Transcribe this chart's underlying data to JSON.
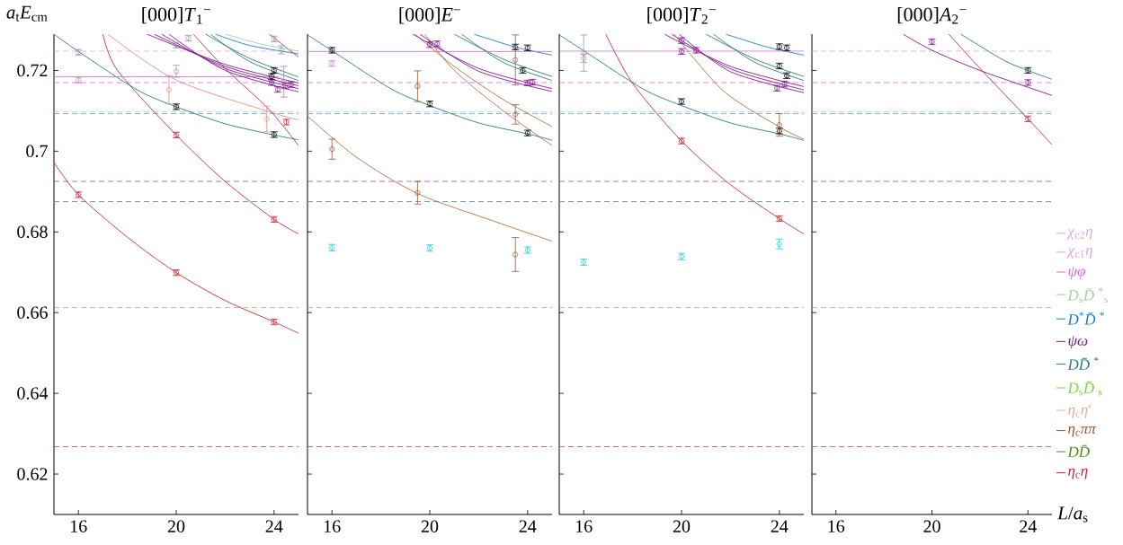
{
  "chart_data": [
    {
      "type": "scatter",
      "title": "[000]*T*$_{1}$$^{−}$",
      "ylabel": "*a*$_{t}$*E*$_{cm}$",
      "xlim": [
        15,
        25
      ],
      "ylim": [
        0.61,
        0.729
      ],
      "xticks": [
        16,
        20,
        24
      ],
      "yticks": [
        0.62,
        0.64,
        0.66,
        0.68,
        0.7,
        0.72
      ],
      "ref_lines": [
        {
          "axis": "y",
          "value": 0.7248,
          "color": "#e0a0e0",
          "line_style": "dashed"
        },
        {
          "axis": "y",
          "value": 0.717,
          "color": "#dd66dd",
          "line_style": "dashed"
        },
        {
          "axis": "y",
          "value": 0.7098,
          "color": "#b5c9b5",
          "line_style": "dashed"
        },
        {
          "axis": "y",
          "value": 0.7093,
          "color": "#6fa8dc",
          "line_style": "dashed"
        },
        {
          "axis": "y",
          "value": 0.6925,
          "color": "#9a4aa2",
          "line_style": "dashed"
        },
        {
          "axis": "y",
          "value": 0.6875,
          "color": "#5f9290",
          "line_style": "dashed"
        },
        {
          "axis": "y",
          "value": 0.6612,
          "color": "#b86a3a",
          "line_style": "dashed"
        },
        {
          "axis": "y",
          "value": 0.6268,
          "color": "#d9505e",
          "line_style": "dashed"
        }
      ],
      "series": [
        {
          "type": "line",
          "color": "#cc2936",
          "x": [
            15,
            16,
            18,
            20,
            22,
            24,
            25
          ],
          "values": [
            0.6972,
            0.6892,
            0.6787,
            0.6699,
            0.663,
            0.6577,
            0.6549
          ]
        },
        {
          "type": "line",
          "color": "#cc2936",
          "x": [
            17.0,
            17.6,
            20,
            22,
            24,
            25
          ],
          "values": [
            0.729,
            0.72,
            0.704,
            0.6925,
            0.6831,
            0.6795
          ]
        },
        {
          "type": "line",
          "color": "#cc2936",
          "x": [
            20.7,
            22,
            23.8,
            25
          ],
          "values": [
            0.729,
            0.7205,
            0.7103,
            0.7014
          ]
        },
        {
          "type": "line",
          "color": "#cc2936",
          "x": [
            23.8,
            25
          ],
          "values": [
            0.729,
            0.7233
          ]
        },
        {
          "type": "line",
          "color": "#2a7b78",
          "x": [
            15,
            16,
            18.4,
            20,
            22,
            24,
            25
          ],
          "values": [
            0.729,
            0.7247,
            0.7152,
            0.711,
            0.7068,
            0.704,
            0.7028
          ]
        },
        {
          "type": "line",
          "color": "#e09088",
          "x": [
            17.2,
            20,
            24,
            25
          ],
          "values": [
            0.729,
            0.7176,
            0.7094,
            0.7078
          ]
        },
        {
          "type": "line",
          "color": "#cc66cc",
          "x": [
            15,
            24.2
          ],
          "values": [
            0.7184,
            0.7184
          ]
        },
        {
          "type": "line",
          "color": "#80168c",
          "x": [
            18.8,
            22,
            25
          ],
          "values": [
            0.729,
            0.7215,
            0.7169
          ]
        },
        {
          "type": "line",
          "color": "#80168c",
          "x": [
            19.1,
            22,
            25
          ],
          "values": [
            0.729,
            0.721,
            0.7162
          ]
        },
        {
          "type": "line",
          "color": "#80168c",
          "x": [
            19.4,
            22,
            25
          ],
          "values": [
            0.729,
            0.7205,
            0.7155
          ]
        },
        {
          "type": "line",
          "color": "#80168c",
          "x": [
            19.7,
            22,
            25
          ],
          "values": [
            0.729,
            0.72,
            0.7147
          ]
        },
        {
          "type": "line",
          "color": "#2a7b78",
          "x": [
            21.2,
            23,
            25
          ],
          "values": [
            0.729,
            0.723,
            0.7184
          ]
        },
        {
          "type": "line",
          "color": "#2a7b78",
          "x": [
            21.4,
            23,
            25
          ],
          "values": [
            0.729,
            0.7222,
            0.7175
          ]
        },
        {
          "type": "line",
          "color": "#1a7acc",
          "x": [
            21.6,
            23,
            25
          ],
          "values": [
            0.729,
            0.7262,
            0.7241
          ]
        },
        {
          "type": "line",
          "color": "#a8c8a8",
          "x": [
            22.0,
            23.5,
            25
          ],
          "values": [
            0.729,
            0.7265,
            0.7248
          ]
        },
        {
          "marker": "circle",
          "color": "#000000",
          "x": [
            20,
            24,
            24,
            23.9
          ],
          "values": [
            0.711,
            0.7041,
            0.72,
            0.7185
          ],
          "errors": [
            0.0007,
            0.0007,
            0.0007,
            0.0007
          ]
        },
        {
          "marker": "circle",
          "color": "#999999",
          "x": [
            16,
            20,
            20.5,
            24,
            24.3
          ],
          "values": [
            0.7245,
            0.7263,
            0.728,
            0.7278,
            0.7251
          ],
          "errors": [
            0.0007,
            0.0007,
            0.0007,
            0.0007,
            0.001
          ]
        },
        {
          "marker": "circle",
          "color": "#cc2936",
          "x": [
            16,
            20,
            20,
            24,
            24,
            24.5
          ],
          "values": [
            0.6892,
            0.704,
            0.6699,
            0.6831,
            0.6577,
            0.7072
          ],
          "errors": [
            0.0007,
            0.0007,
            0.0007,
            0.0007,
            0.0007,
            0.0007
          ]
        },
        {
          "marker": "circle",
          "color": "#cc88cc",
          "x": [
            16,
            20
          ],
          "values": [
            0.7176,
            0.7198
          ],
          "errors": [
            0.0007,
            0.0015
          ]
        },
        {
          "marker": "circle",
          "color": "#e09088",
          "x": [
            19.7,
            23.7
          ],
          "values": [
            0.7152,
            0.708
          ],
          "errors": [
            0.0035,
            0.0032
          ]
        },
        {
          "marker": "circle",
          "color": "#80168c",
          "x": [
            23.9,
            24.15,
            24.45,
            24.7
          ],
          "values": [
            0.717,
            0.7153,
            0.7162,
            0.7165
          ],
          "errors": [
            0.0007,
            0.0007,
            0.0007,
            0.0007
          ]
        },
        {
          "marker": "circle",
          "color": "#cc66cc",
          "x": [
            24.4
          ],
          "values": [
            0.7172
          ],
          "errors": [
            0.0038
          ]
        }
      ]
    },
    {
      "type": "scatter",
      "title": "[000]*E*$^{−}$",
      "xlim": [
        15,
        25
      ],
      "ylim": [
        0.61,
        0.729
      ],
      "xticks": [
        16,
        20,
        24
      ],
      "yticks": [
        0.62,
        0.64,
        0.66,
        0.68,
        0.7,
        0.72
      ],
      "tick_labels": "x",
      "ref_lines": [
        {
          "axis": "y",
          "value": 0.717,
          "color": "#dd66dd",
          "line_style": "dashed"
        },
        {
          "axis": "y",
          "value": 0.7098,
          "color": "#b5c9b5",
          "line_style": "dashed"
        },
        {
          "axis": "y",
          "value": 0.7093,
          "color": "#6fa8dc",
          "line_style": "dashed"
        },
        {
          "axis": "y",
          "value": 0.6925,
          "color": "#9a4aa2",
          "line_style": "dashed"
        },
        {
          "axis": "y",
          "value": 0.6875,
          "color": "#5f9290",
          "line_style": "dashed"
        },
        {
          "axis": "y",
          "value": 0.6612,
          "color": "#b86a3a",
          "line_style": "dashed"
        },
        {
          "axis": "y",
          "value": 0.6268,
          "color": "#d9505e",
          "line_style": "dashed"
        }
      ],
      "series": [
        {
          "type": "line",
          "color": "#2a7b78",
          "x": [
            15,
            16,
            18.4,
            20,
            22,
            24,
            25
          ],
          "values": [
            0.7288,
            0.7249,
            0.7155,
            0.7113,
            0.707,
            0.7043,
            0.7027
          ]
        },
        {
          "type": "line",
          "color": "#b0704a",
          "x": [
            15,
            17,
            19.5,
            22.6,
            25
          ],
          "values": [
            0.7087,
            0.6985,
            0.6895,
            0.6827,
            0.6777
          ]
        },
        {
          "type": "line",
          "color": "#b0704a",
          "x": [
            19.4,
            21,
            23,
            25
          ],
          "values": [
            0.729,
            0.721,
            0.7128,
            0.7061
          ]
        },
        {
          "type": "line",
          "color": "#b0704a",
          "x": [
            19.8,
            21,
            23,
            25
          ],
          "values": [
            0.729,
            0.72,
            0.71,
            0.7014
          ]
        },
        {
          "type": "line",
          "color": "#80168c",
          "x": [
            19.3,
            22,
            25
          ],
          "values": [
            0.729,
            0.7205,
            0.7155
          ]
        },
        {
          "type": "line",
          "color": "#80168c",
          "x": [
            19.6,
            22,
            25
          ],
          "values": [
            0.729,
            0.7198,
            0.7148
          ]
        },
        {
          "type": "line",
          "color": "#2a7b78",
          "x": [
            21.0,
            23,
            25
          ],
          "values": [
            0.729,
            0.7228,
            0.7185
          ]
        },
        {
          "type": "line",
          "color": "#2a7b78",
          "x": [
            21.3,
            23,
            25
          ],
          "values": [
            0.729,
            0.722,
            0.7175
          ]
        },
        {
          "type": "line",
          "color": "#1a7acc",
          "x": [
            21.8,
            23.5,
            25
          ],
          "values": [
            0.729,
            0.7258,
            0.7238
          ]
        },
        {
          "type": "line",
          "color": "#cc66cc",
          "x": [
            15,
            25
          ],
          "values": [
            0.7247,
            0.7247
          ]
        },
        {
          "marker": "circle",
          "color": "#000000",
          "x": [
            16,
            20,
            23.5,
            23.8,
            24,
            24
          ],
          "values": [
            0.725,
            0.7117,
            0.7258,
            0.72,
            0.7256,
            0.7045
          ],
          "errors": [
            0.0007,
            0.0007,
            0.0007,
            0.0007,
            0.0007,
            0.0007
          ]
        },
        {
          "marker": "circle",
          "color": "#cc88cc",
          "x": [
            16
          ],
          "values": [
            0.7217
          ],
          "errors": [
            0.0007
          ]
        },
        {
          "marker": "circle",
          "color": "#a0522d",
          "x": [
            16,
            19.5,
            19.5,
            23.5,
            23.5,
            23.5
          ],
          "values": [
            0.7005,
            0.7161,
            0.6897,
            0.7226,
            0.7091,
            0.6744
          ],
          "errors": [
            0.0025,
            0.0038,
            0.0028,
            0.0062,
            0.0024,
            0.0042
          ]
        },
        {
          "marker": "circle",
          "color": "#20d0d0",
          "x": [
            16,
            20,
            24
          ],
          "values": [
            0.6761,
            0.676,
            0.6755
          ],
          "errors": [
            0.0008,
            0.0008,
            0.0008
          ]
        },
        {
          "marker": "circle",
          "color": "#80168c",
          "x": [
            20,
            20.3,
            24,
            24.2
          ],
          "values": [
            0.7264,
            0.7266,
            0.7169,
            0.7171
          ],
          "errors": [
            0.0007,
            0.0007,
            0.0007,
            0.0007
          ]
        }
      ]
    },
    {
      "type": "scatter",
      "title": "[000]*T*$_{2}$$^{−}$",
      "xlim": [
        15,
        25
      ],
      "ylim": [
        0.61,
        0.729
      ],
      "xticks": [
        16,
        20,
        24
      ],
      "yticks": [
        0.62,
        0.64,
        0.66,
        0.68,
        0.7,
        0.72
      ],
      "tick_labels": "x",
      "ref_lines": [
        {
          "axis": "y",
          "value": 0.717,
          "color": "#dd66dd",
          "line_style": "dashed"
        },
        {
          "axis": "y",
          "value": 0.7098,
          "color": "#b5c9b5",
          "line_style": "dashed"
        },
        {
          "axis": "y",
          "value": 0.7093,
          "color": "#6fa8dc",
          "line_style": "dashed"
        },
        {
          "axis": "y",
          "value": 0.6925,
          "color": "#9a4aa2",
          "line_style": "dashed"
        },
        {
          "axis": "y",
          "value": 0.6875,
          "color": "#5f9290",
          "line_style": "dashed"
        },
        {
          "axis": "y",
          "value": 0.6612,
          "color": "#b86a3a",
          "line_style": "dashed"
        },
        {
          "axis": "y",
          "value": 0.6268,
          "color": "#d9505e",
          "line_style": "dashed"
        }
      ],
      "series": [
        {
          "type": "line",
          "color": "#2a7b78",
          "x": [
            15,
            16,
            18.4,
            20,
            22,
            24,
            25
          ],
          "values": [
            0.7288,
            0.7249,
            0.7155,
            0.7113,
            0.707,
            0.7043,
            0.7027
          ]
        },
        {
          "type": "line",
          "color": "#cc2936",
          "x": [
            16.9,
            18,
            20,
            22,
            24,
            25
          ],
          "values": [
            0.729,
            0.7168,
            0.7025,
            0.6917,
            0.6833,
            0.6795
          ]
        },
        {
          "type": "line",
          "color": "#80168c",
          "x": [
            19.3,
            22,
            25
          ],
          "values": [
            0.729,
            0.721,
            0.716
          ]
        },
        {
          "type": "line",
          "color": "#80168c",
          "x": [
            19.6,
            22,
            25
          ],
          "values": [
            0.729,
            0.7204,
            0.7152
          ]
        },
        {
          "type": "line",
          "color": "#80168c",
          "x": [
            19.9,
            22,
            25
          ],
          "values": [
            0.729,
            0.7197,
            0.7145
          ]
        },
        {
          "type": "line",
          "color": "#2a7b78",
          "x": [
            21.0,
            23,
            25
          ],
          "values": [
            0.729,
            0.7228,
            0.7185
          ]
        },
        {
          "type": "line",
          "color": "#2a7b78",
          "x": [
            21.3,
            23,
            25
          ],
          "values": [
            0.729,
            0.722,
            0.7175
          ]
        },
        {
          "type": "line",
          "color": "#1a7acc",
          "x": [
            21.8,
            23.5,
            25
          ],
          "values": [
            0.729,
            0.7258,
            0.7238
          ]
        },
        {
          "type": "line",
          "color": "#b0704a",
          "x": [
            19.7,
            21.7,
            24,
            25
          ],
          "values": [
            0.729,
            0.715,
            0.706,
            0.703
          ]
        },
        {
          "type": "line",
          "color": "#cc66cc",
          "x": [
            15,
            25
          ],
          "values": [
            0.7248,
            0.7248
          ]
        },
        {
          "marker": "circle",
          "color": "#999999",
          "x": [
            16
          ],
          "values": [
            0.7243
          ],
          "errors": [
            0.0045
          ]
        },
        {
          "marker": "circle",
          "color": "#cc88cc",
          "x": [
            16
          ],
          "values": [
            0.723
          ],
          "errors": [
            0.001
          ]
        },
        {
          "marker": "circle",
          "color": "#000000",
          "x": [
            20,
            24,
            24,
            24.3,
            24,
            24.3
          ],
          "values": [
            0.7123,
            0.705,
            0.7211,
            0.7187,
            0.7259,
            0.7256
          ],
          "errors": [
            0.0007,
            0.0007,
            0.0007,
            0.0007,
            0.0007,
            0.0007
          ]
        },
        {
          "marker": "circle",
          "color": "#cc2936",
          "x": [
            20,
            24
          ],
          "values": [
            0.7025,
            0.6833
          ],
          "errors": [
            0.0007,
            0.0007
          ]
        },
        {
          "marker": "circle",
          "color": "#20d0d0",
          "x": [
            16,
            20,
            24
          ],
          "values": [
            0.6725,
            0.6739,
            0.677
          ],
          "errors": [
            0.0008,
            0.0008,
            0.0012
          ]
        },
        {
          "marker": "circle",
          "color": "#80168c",
          "x": [
            20,
            20,
            20.6,
            23.9,
            24.2
          ],
          "values": [
            0.7274,
            0.7247,
            0.725,
            0.7156,
            0.7166
          ],
          "errors": [
            0.0007,
            0.0007,
            0.0007,
            0.0007,
            0.0007
          ]
        },
        {
          "marker": "circle",
          "color": "#a0522d",
          "x": [
            24
          ],
          "values": [
            0.7065
          ],
          "errors": [
            0.0028
          ]
        }
      ]
    },
    {
      "type": "scatter",
      "title": "[000]*A*$_{2}$$^{−}$",
      "xlabel": "*L*/*a*$_{s}$",
      "xlim": [
        15,
        25
      ],
      "ylim": [
        0.61,
        0.729
      ],
      "xticks": [
        16,
        20,
        24
      ],
      "yticks": [
        0.62,
        0.64,
        0.66,
        0.68,
        0.7,
        0.72
      ],
      "tick_labels": "x",
      "legend": "right",
      "ref_lines": [
        {
          "axis": "y",
          "value": 0.7248,
          "color": "#e0a0e0",
          "line_style": "dashed"
        },
        {
          "axis": "y",
          "value": 0.717,
          "color": "#dd66dd",
          "line_style": "dashed"
        },
        {
          "axis": "y",
          "value": 0.7098,
          "color": "#b5c9b5",
          "line_style": "dashed"
        },
        {
          "axis": "y",
          "value": 0.7093,
          "color": "#6fa8dc",
          "line_style": "dashed"
        },
        {
          "axis": "y",
          "value": 0.6925,
          "color": "#9a4aa2",
          "line_style": "dashed"
        },
        {
          "axis": "y",
          "value": 0.6875,
          "color": "#5f9290",
          "line_style": "dashed"
        },
        {
          "axis": "y",
          "value": 0.6612,
          "color": "#b86a3a",
          "line_style": "dashed"
        },
        {
          "axis": "y",
          "value": 0.6268,
          "color": "#d9505e",
          "line_style": "dashed"
        }
      ],
      "series": [
        {
          "name": "*χ*$_{c2}$*η*",
          "type": "line",
          "color": "#d8a8e0",
          "values": [
            null
          ]
        },
        {
          "name": "*χ*$_{c1}$*η*",
          "type": "line",
          "color": "#e0a0e0",
          "values": [
            null
          ]
        },
        {
          "name": "*ψφ*",
          "type": "line",
          "color": "#dd66dd",
          "values": [
            null
          ]
        },
        {
          "name": "*D*$_{s}$*D̄*$^{*}$$_{s}$",
          "type": "line",
          "color": "#a8c8a8",
          "values": [
            null
          ]
        },
        {
          "name": "*D*$^{*}$*D̄*$^{*}$",
          "type": "line",
          "color": "#1a7acc",
          "values": [
            null
          ]
        },
        {
          "name": "*ψω*",
          "type": "line",
          "color": "#80168c",
          "values": [
            null
          ]
        },
        {
          "name": "*DD̄*$^{*}$",
          "type": "line",
          "color": "#2a7b78",
          "values": [
            null
          ]
        },
        {
          "name": "*D*$_{s}$*D̄*$_{s}$",
          "type": "line",
          "color": "#88cc44",
          "values": [
            null
          ]
        },
        {
          "name": "*η*$_{c}$*η*′",
          "type": "line",
          "color": "#e8a8a0",
          "values": [
            null
          ]
        },
        {
          "name": "*η*$_{c}$*ππ*",
          "type": "line",
          "color": "#a0522d",
          "values": [
            null
          ]
        },
        {
          "name": "*DD̄*",
          "type": "line",
          "color": "#4a8a1a",
          "values": [
            null
          ]
        },
        {
          "name": "*η*$_{c}$*η*",
          "type": "line",
          "color": "#cc2936",
          "values": [
            null
          ]
        },
        {
          "type": "line",
          "color": "#80168c",
          "x": [
            18.8,
            20,
            22,
            25
          ],
          "values": [
            0.729,
            0.725,
            0.72,
            0.7138
          ]
        },
        {
          "type": "line",
          "color": "#cc2936",
          "x": [
            20.7,
            22,
            24,
            25
          ],
          "values": [
            0.729,
            0.7205,
            0.708,
            0.7016
          ]
        },
        {
          "type": "line",
          "color": "#2a7b78",
          "x": [
            21.2,
            23,
            24,
            25
          ],
          "values": [
            0.729,
            0.7225,
            0.72,
            0.7178
          ]
        },
        {
          "marker": "circle",
          "color": "#80168c",
          "x": [
            20,
            24
          ],
          "values": [
            0.7271,
            0.717
          ],
          "errors": [
            0.0007,
            0.0007
          ]
        },
        {
          "marker": "circle",
          "color": "#000000",
          "x": [
            24
          ],
          "values": [
            0.72
          ],
          "errors": [
            0.0007
          ]
        },
        {
          "marker": "circle",
          "color": "#cc2936",
          "x": [
            24
          ],
          "values": [
            0.708
          ],
          "errors": [
            0.0007
          ]
        }
      ]
    }
  ]
}
